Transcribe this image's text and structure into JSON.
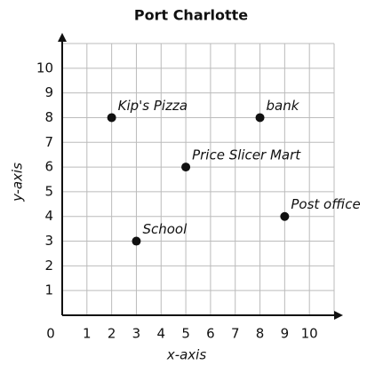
{
  "chart_data": {
    "type": "scatter",
    "title": "Port Charlotte",
    "x_label": "x-axis",
    "y_label": "y-axis",
    "labels": [
      "Kip's Pizza",
      "bank",
      "Price Slicer Mart",
      "Post office",
      "School"
    ],
    "x": [
      2,
      8,
      5,
      9,
      3
    ],
    "values": [
      8,
      8,
      6,
      4,
      3
    ],
    "color": "#111111",
    "xlim": [
      0,
      11
    ],
    "ylim": [
      0,
      11
    ],
    "xticks": [
      0,
      1,
      2,
      3,
      4,
      5,
      6,
      7,
      8,
      9,
      10
    ],
    "yticks": [
      1,
      2,
      3,
      4,
      5,
      6,
      7,
      8,
      9,
      10
    ],
    "grid": true
  }
}
